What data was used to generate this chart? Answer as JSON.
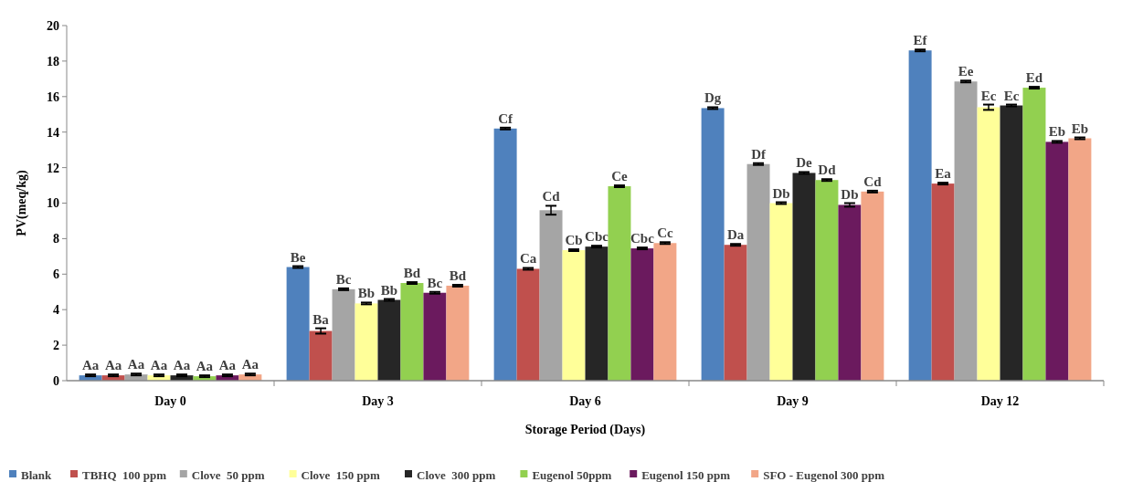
{
  "chart_data": {
    "type": "bar",
    "xlabel": "Storage Period  (Days)",
    "ylabel": "PV(meq/kg)",
    "categories": [
      "Day 0",
      "Day 3",
      "Day 6",
      "Day 9",
      "Day 12"
    ],
    "ylim": [
      0,
      20
    ],
    "yticks": [
      0,
      2,
      4,
      6,
      8,
      10,
      12,
      14,
      16,
      18,
      20
    ],
    "grid": false,
    "legend": "bottom",
    "series": [
      {
        "name": "Blank",
        "color": "#4f81bd",
        "values": [
          0.3,
          6.4,
          14.2,
          15.35,
          18.6
        ],
        "errors": [
          0.05,
          0.05,
          0.05,
          0.05,
          0.05
        ],
        "value_labels": [
          "Aa",
          "Be",
          "Cf",
          "Dg",
          "Ef"
        ]
      },
      {
        "name": "TBHQ  100 ppm",
        "color": "#c0504d",
        "values": [
          0.3,
          2.8,
          6.3,
          7.65,
          11.1
        ],
        "errors": [
          0.05,
          0.15,
          0.05,
          0.05,
          0.05
        ],
        "value_labels": [
          "Aa",
          "Ba",
          "Ca",
          "Da",
          "Ea"
        ]
      },
      {
        "name": "Clove  50 ppm",
        "color": "#a5a5a5",
        "values": [
          0.35,
          5.15,
          9.6,
          12.2,
          16.85
        ],
        "errors": [
          0.05,
          0.05,
          0.25,
          0.05,
          0.05
        ],
        "value_labels": [
          "Aa",
          "Bc",
          "Cd",
          "Df",
          "Ee"
        ]
      },
      {
        "name": "Clove  150 ppm",
        "color": "#ffff99",
        "values": [
          0.3,
          4.35,
          7.35,
          10.0,
          15.4
        ],
        "errors": [
          0.05,
          0.05,
          0.05,
          0.05,
          0.15
        ],
        "value_labels": [
          "Aa",
          "Bb",
          "Cb",
          "Db",
          "Ec"
        ]
      },
      {
        "name": "Clove  300 ppm",
        "color": "#262626",
        "values": [
          0.3,
          4.55,
          7.55,
          11.7,
          15.5
        ],
        "errors": [
          0.05,
          0.05,
          0.05,
          0.05,
          0.05
        ],
        "value_labels": [
          "Aa",
          "Bb",
          "Cbc",
          "De",
          "Ec"
        ]
      },
      {
        "name": "Eugenol 50ppm",
        "color": "#92d050",
        "values": [
          0.25,
          5.5,
          10.95,
          11.3,
          16.5
        ],
        "errors": [
          0.05,
          0.05,
          0.05,
          0.05,
          0.05
        ],
        "value_labels": [
          "Aa",
          "Bd",
          "Ce",
          "Dd",
          "Ed"
        ]
      },
      {
        "name": "Eugenol 150 ppm",
        "color": "#6b1a5e",
        "values": [
          0.3,
          4.95,
          7.45,
          9.9,
          13.45
        ],
        "errors": [
          0.05,
          0.05,
          0.05,
          0.1,
          0.05
        ],
        "value_labels": [
          "Aa",
          "Bc",
          "Cbc",
          "Db",
          "Eb"
        ]
      },
      {
        "name": "SFO - Eugenol 300 ppm",
        "color": "#f2a687",
        "values": [
          0.35,
          5.35,
          7.75,
          10.65,
          13.65
        ],
        "errors": [
          0.05,
          0.05,
          0.05,
          0.05,
          0.05
        ],
        "value_labels": [
          "Aa",
          "Bd",
          "Cc",
          "Cd",
          "Eb"
        ]
      }
    ]
  }
}
